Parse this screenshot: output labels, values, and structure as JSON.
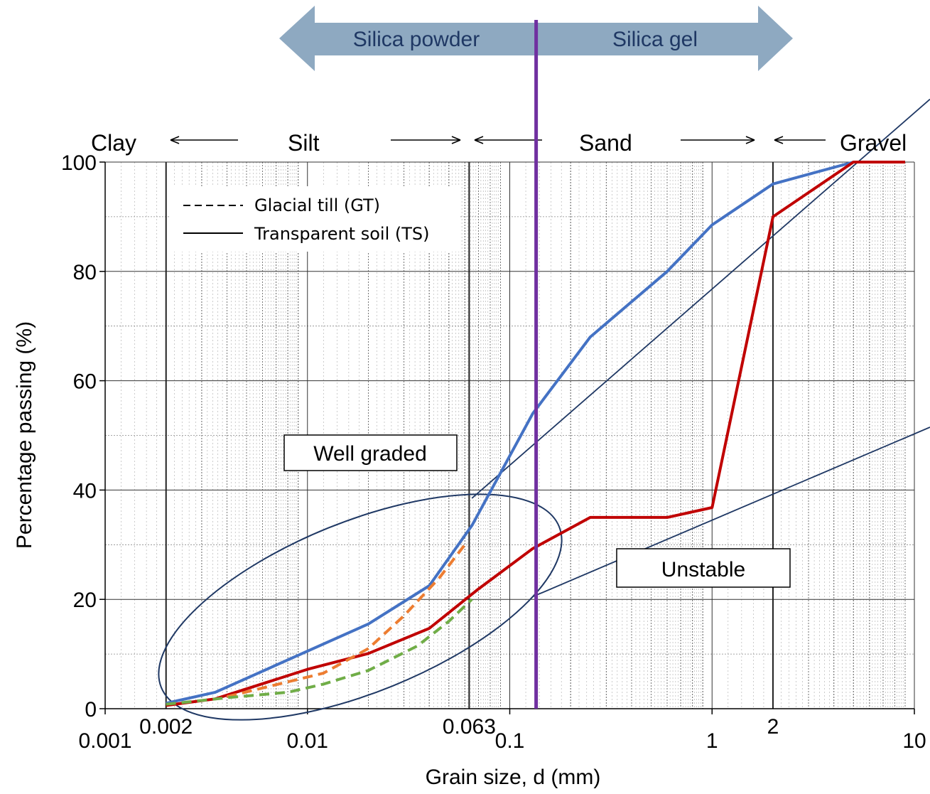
{
  "chart_data": {
    "type": "line",
    "xlabel": "Grain size, d (mm)",
    "ylabel": "Percentage passing (%)",
    "x_scale": "log",
    "xlim": [
      0.001,
      10
    ],
    "ylim": [
      0,
      100
    ],
    "grid": true,
    "x_ticks": [
      {
        "value": 0.001,
        "label": "0.001"
      },
      {
        "value": 0.01,
        "label": "0.01"
      },
      {
        "value": 0.1,
        "label": "0.1"
      },
      {
        "value": 1,
        "label": "1"
      },
      {
        "value": 10,
        "label": "10"
      }
    ],
    "x_ticks_extra": [
      {
        "value": 0.002,
        "label": "0.002"
      },
      {
        "value": 0.063,
        "label": "0.063"
      },
      {
        "value": 2,
        "label": "2"
      }
    ],
    "y_ticks": [
      0,
      20,
      40,
      60,
      80,
      100
    ],
    "legend": {
      "placement": "top-left",
      "entries": [
        {
          "label": "Glacial till (GT)",
          "style": "dashed"
        },
        {
          "label": "Transparent soil (TS)",
          "style": "solid"
        }
      ]
    },
    "series": [
      {
        "color": "#4472c4",
        "style": "solid",
        "x": [
          0.002,
          0.0035,
          0.02,
          0.04,
          0.065,
          0.13,
          0.25,
          0.6,
          1,
          2,
          5
        ],
        "y": [
          1,
          3,
          15.5,
          22.5,
          33.5,
          54,
          68,
          80,
          88.5,
          96,
          100
        ]
      },
      {
        "color": "#c00000",
        "style": "solid",
        "x": [
          0.002,
          0.0035,
          0.01,
          0.02,
          0.04,
          0.07,
          0.13,
          0.25,
          0.6,
          1,
          2,
          5,
          9
        ],
        "y": [
          0.6,
          1.8,
          7.2,
          10.1,
          14.7,
          21.9,
          29.3,
          35,
          35,
          36.8,
          90,
          100,
          100
        ]
      },
      {
        "color": "#ed7d31",
        "style": "dashed",
        "x": [
          0.004,
          0.012,
          0.02,
          0.03,
          0.045,
          0.06
        ],
        "y": [
          2.2,
          6.5,
          11,
          17,
          24,
          30
        ]
      },
      {
        "color": "#70ad47",
        "style": "dashed",
        "x": [
          0.002,
          0.004,
          0.008,
          0.012,
          0.02,
          0.035,
          0.05,
          0.065
        ],
        "y": [
          0.8,
          2,
          3,
          4.5,
          7,
          11.5,
          16,
          20
        ]
      }
    ],
    "annotations": {
      "soil_classes": {
        "clay": "Clay",
        "silt": "Silt",
        "sand": "Sand",
        "gravel": "Gravel"
      },
      "arrow_left_label": "Silica powder",
      "arrow_right_label": "Silica gel",
      "well_graded_label": "Well graded",
      "unstable_label": "Unstable",
      "divider_x": 0.135,
      "divider_color": "#7030a0",
      "arrow_color": "#8ea9c1"
    }
  }
}
